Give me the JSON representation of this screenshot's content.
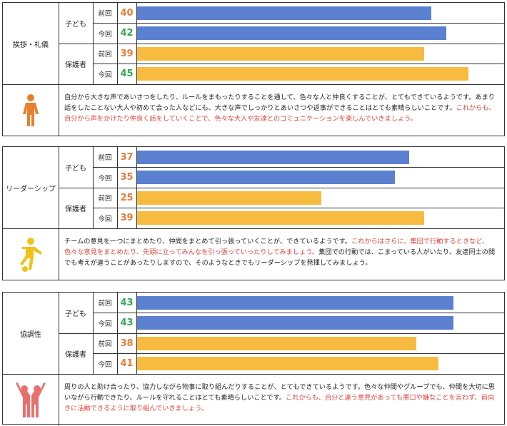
{
  "colors": {
    "child_bar": "#5b80cf",
    "guardian_bar": "#f7bc3f",
    "prev_num": "#e87c38",
    "cur_num": "#36a85a",
    "red_text": "#e0433a"
  },
  "chart_data": [
    {
      "type": "bar",
      "title": "挨拶・礼儀",
      "xlim": [
        0,
        50
      ],
      "groups": [
        {
          "name": "子ども",
          "rows": [
            {
              "label": "前回",
              "value": 40
            },
            {
              "label": "今回",
              "value": 42
            }
          ]
        },
        {
          "name": "保護者",
          "rows": [
            {
              "label": "前回",
              "value": 39
            },
            {
              "label": "今回",
              "value": 45
            }
          ]
        }
      ],
      "icon": "standing-person-icon",
      "comment_black": "自分から大きな声であいさつをしたり、ルールをまもったりすることを通して、色々な人と仲良くすることが、とてもできているようです。あまり話をしたことない大人や初めて会った人などにも、大きな声でしっかりとあいさつや返事ができることはとても素晴らしいことです。",
      "comment_red": "これからも、自分から声をかけたり仲良く話をしていくことで、色々な大人や友達とのコミュニケーションを楽しんでいきましょう。"
    },
    {
      "type": "bar",
      "title": "リーダーシップ",
      "xlim": [
        0,
        50
      ],
      "groups": [
        {
          "name": "子ども",
          "rows": [
            {
              "label": "前回",
              "value": 37
            },
            {
              "label": "今回",
              "value": 35
            }
          ]
        },
        {
          "name": "保護者",
          "rows": [
            {
              "label": "前回",
              "value": 25
            },
            {
              "label": "今回",
              "value": 39
            }
          ]
        }
      ],
      "icon": "kicking-person-icon",
      "comment_black": "チームの意見を一つにまとめたり、仲間をまとめて引っ張っていくことが、できているようです。",
      "comment_red": "これからはさらに、集団で行動するときなど、色々な意見をまとめたり、先頭に立ってみんなを引っ張っていったりしてみましょう。",
      "comment_black2": "集団での行動では、こまっている人がいたり、友達同士の間でも考えが違うことがあったりしますので、そのようなときでもリーダーシップを発揮してみましょう。"
    },
    {
      "type": "bar",
      "title": "協調性",
      "xlim": [
        0,
        50
      ],
      "groups": [
        {
          "name": "子ども",
          "rows": [
            {
              "label": "前回",
              "value": 43
            },
            {
              "label": "今回",
              "value": 43
            }
          ]
        },
        {
          "name": "保護者",
          "rows": [
            {
              "label": "前回",
              "value": 38
            },
            {
              "label": "今回",
              "value": 41
            }
          ]
        }
      ],
      "icon": "cheering-pair-icon",
      "comment_black": "周りの人と助け合ったり、協力しながら物事に取り組んだりすることが、とてもできているようです。色々な仲間やグループでも、仲間を大切に思いながら行動できたり、ルールを守れることはとても素晴らしいことです。",
      "comment_red": "これからも、自分と違う意見があっても悪口や嫌なことを言わず、前向きに活動できるように取り組んでいきましょう。"
    }
  ]
}
